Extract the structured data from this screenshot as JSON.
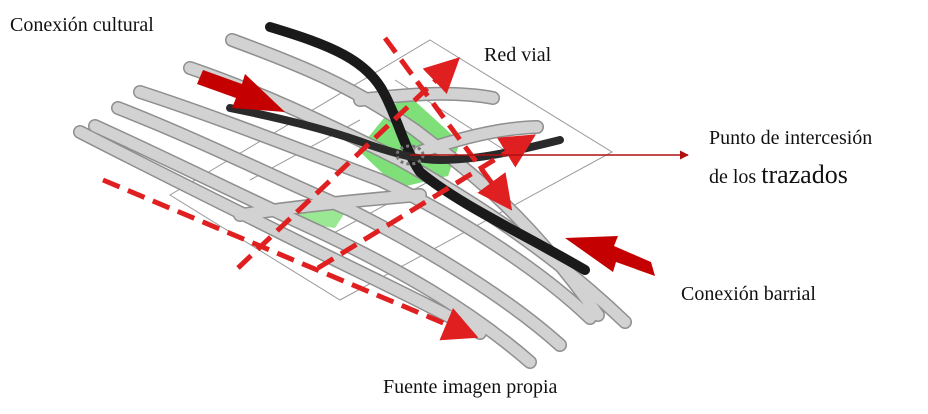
{
  "labels": {
    "cultural": "Conexión cultural",
    "red_vial": "Red vial",
    "punto_line1": "Punto de intercesión",
    "punto_line2_prefix": "de los",
    "punto_line2_big": "trazados",
    "barrial": "Conexión barrial",
    "fuente": "Fuente imagen propia"
  },
  "colors": {
    "road_gray": "#c8c8c8",
    "road_edge": "#8f8f8f",
    "main_road": "#1a1a1a",
    "green_zone": "#7fe07a",
    "arrow_red": "#c40000",
    "dash_red": "#e02020",
    "plane_line": "#9a9a9a"
  }
}
